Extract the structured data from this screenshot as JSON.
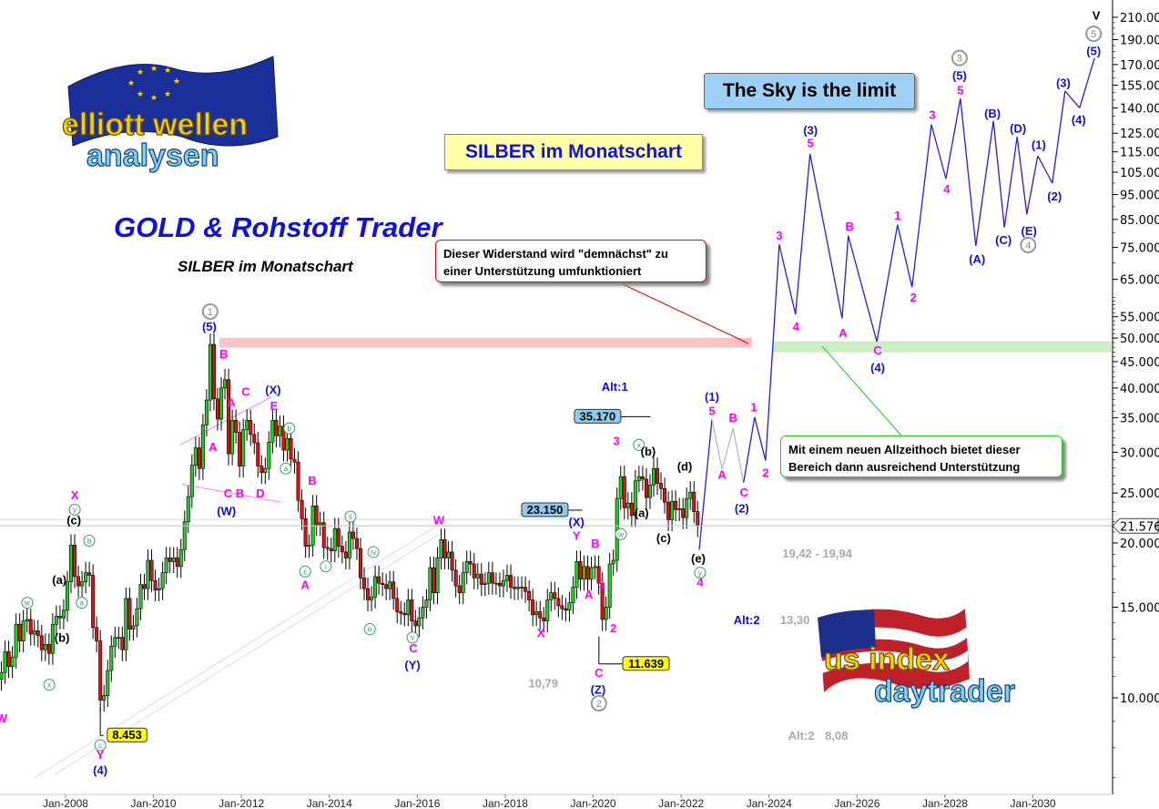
{
  "header": {
    "title_box": "SILBER im Monatschart",
    "sky_box": "The Sky is the limit",
    "trader_title": "GOLD & Rohstoff Trader",
    "sub_title": "SILBER im Monatschart",
    "logo_top": "elliott wellen analysen",
    "logo_bottom": "us index daytrader"
  },
  "callouts": {
    "red": "Dieser Widerstand wird \"demnächst\" zu einer Unterstützung umfunktioniert",
    "green": "Mit einem neuen Allzeithoch bietet dieser Bereich dann ausreichend Unterstützung"
  },
  "colors": {
    "up": "#22cc22",
    "down": "#e01010",
    "magenta": "#ff00ff",
    "blue": "#1010e0",
    "projection": "#2020e0",
    "resistance_zone": "#ffc0c8",
    "support_zone": "#c8f0c0",
    "gray": "#a0a0a0"
  },
  "chart_data": {
    "type": "candlestick",
    "instrument": "SILBER",
    "timeframe": "Monatschart",
    "y_scale": "log",
    "ylim": [
      6.6,
      225
    ],
    "xlim": [
      2006.51,
      2031.77
    ],
    "y_ticks": [
      10,
      15,
      20,
      25,
      30,
      35,
      40,
      45,
      50,
      55,
      65,
      75,
      85,
      95,
      105,
      115,
      125,
      140,
      155,
      170,
      190,
      210
    ],
    "y_tick_labels": [
      "10.000",
      "15.000",
      "20.000",
      "25.000",
      "30.000",
      "35.000",
      "40.000",
      "45.000",
      "50.000",
      "55.000",
      "65.000",
      "75.000",
      "85.000",
      "95.000",
      "105.000",
      "115.000",
      "125.000",
      "140.000",
      "155.000",
      "170.000",
      "190.000",
      "210.000"
    ],
    "x_ticks": [
      2008,
      2010,
      2012,
      2014,
      2016,
      2018,
      2020,
      2022,
      2024,
      2026,
      2028,
      2030
    ],
    "x_tick_labels": [
      "Jan-2008",
      "Jan-2010",
      "Jan-2012",
      "Jan-2014",
      "Jan-2016",
      "Jan-2018",
      "Jan-2020",
      "Jan-2022",
      "Jan-2024",
      "Jan-2026",
      "Jan-2028",
      "Jan-2030"
    ],
    "current_price": 21.576,
    "current_price_label": "21.576",
    "monthly_start": "2006-07",
    "monthly_closes": [
      11.2,
      12.3,
      11.5,
      12.0,
      13.9,
      12.9,
      14.1,
      14.2,
      13.3,
      13.5,
      13.2,
      12.4,
      12.7,
      12.2,
      13.9,
      14.4,
      14.3,
      14.8,
      16.8,
      19.8,
      17.2,
      16.5,
      16.8,
      17.5,
      17.3,
      13.7,
      12.9,
      9.9,
      10.1,
      11.3,
      12.6,
      13.1,
      13.1,
      12.4,
      15.6,
      13.6,
      13.8,
      14.9,
      16.6,
      16.3,
      18.5,
      16.9,
      16.2,
      16.3,
      17.5,
      18.7,
      18.4,
      18.7,
      18.0,
      19.4,
      22.0,
      24.6,
      28.3,
      30.6,
      27.9,
      33.9,
      37.9,
      48.6,
      38.1,
      34.8,
      40.0,
      41.5,
      29.8,
      34.6,
      32.8,
      28.2,
      33.2,
      34.6,
      32.5,
      31.3,
      28.2,
      27.4,
      27.9,
      31.4,
      34.6,
      32.3,
      33.7,
      30.3,
      31.9,
      29.1,
      28.7,
      24.2,
      22.3,
      19.7,
      19.8,
      23.6,
      21.7,
      21.9,
      19.6,
      19.5,
      19.3,
      21.3,
      19.7,
      19.2,
      18.7,
      21.0,
      20.4,
      19.5,
      17.1,
      16.3,
      15.5,
      15.7,
      17.2,
      16.7,
      16.6,
      16.3,
      16.8,
      15.6,
      14.7,
      14.6,
      14.5,
      15.5,
      14.1,
      13.8,
      14.3,
      15.0,
      15.5,
      17.9,
      16.0,
      18.7,
      20.3,
      18.7,
      19.2,
      17.7,
      16.5,
      16.0,
      17.5,
      18.4,
      18.2,
      17.1,
      17.4,
      16.6,
      16.7,
      17.5,
      16.7,
      16.7,
      16.5,
      16.9,
      17.3,
      16.4,
      16.3,
      16.4,
      16.4,
      16.1,
      15.5,
      14.5,
      14.7,
      14.3,
      14.1,
      15.5,
      16.0,
      15.6,
      15.1,
      14.9,
      14.8,
      15.3,
      16.4,
      18.4,
      17.0,
      18.0,
      17.0,
      17.9,
      18.0,
      16.7,
      14.2,
      15.0,
      18.2,
      18.5,
      24.4,
      26.9,
      23.4,
      23.9,
      22.6,
      26.4,
      26.9,
      26.6,
      24.5,
      25.9,
      27.9,
      26.1,
      25.5,
      24.0,
      22.2,
      24.1,
      23.2,
      23.3,
      22.4,
      24.4,
      25.1,
      23.0,
      21.6
    ],
    "zones": [
      {
        "name": "resistance",
        "from": 2011.5,
        "to": 2023.6,
        "low": 48.0,
        "high": 50.0,
        "color": "#ffc0c8"
      },
      {
        "name": "support",
        "from": 2024.1,
        "to": 2031.77,
        "low": 47.0,
        "high": 49.2,
        "color": "#c8f0c0"
      }
    ],
    "horizontal_lines": [
      22.2,
      21.6
    ],
    "price_tags": [
      {
        "text": "35.170",
        "date": 2020.1,
        "price": 35.17,
        "style": "blue",
        "line_to": 2021.3
      },
      {
        "text": "23.150",
        "date": 2018.9,
        "price": 23.15,
        "style": "blue",
        "line_to": 2019.75
      },
      {
        "text": "11.639",
        "date": 2021.2,
        "price": 11.639,
        "style": "yellow",
        "line_from": 2020.13
      },
      {
        "text": "8.453",
        "date": 2009.4,
        "price": 8.453,
        "style": "yellow",
        "line_from": 2008.79
      }
    ],
    "projection": {
      "points": [
        [
          2022.41,
          19.4
        ],
        [
          2022.7,
          34.8
        ],
        [
          2022.93,
          27.8
        ],
        [
          2023.18,
          33.4
        ],
        [
          2023.42,
          26.2
        ],
        [
          2023.67,
          35.1
        ],
        [
          2023.92,
          28.9
        ],
        [
          2024.23,
          76
        ],
        [
          2024.6,
          55.6
        ],
        [
          2024.93,
          114
        ],
        [
          2025.66,
          54.6
        ],
        [
          2025.8,
          79
        ],
        [
          2026.45,
          49.2
        ],
        [
          2026.92,
          83
        ],
        [
          2027.25,
          62.8
        ],
        [
          2027.69,
          130
        ],
        [
          2028.02,
          102
        ],
        [
          2028.35,
          146
        ],
        [
          2028.7,
          75.5
        ],
        [
          2029.1,
          132
        ],
        [
          2029.35,
          82
        ],
        [
          2029.64,
          123
        ],
        [
          2029.86,
          87
        ],
        [
          2030.11,
          113
        ],
        [
          2030.44,
          100
        ],
        [
          2030.73,
          151
        ],
        [
          2031.06,
          140
        ],
        [
          2031.4,
          175
        ]
      ],
      "gray_segments": [
        1,
        2,
        3
      ]
    },
    "channel_lines": [
      [
        [
          2007.3,
          7.0
        ],
        [
          2016.45,
          21.6
        ]
      ],
      [
        [
          2007.75,
          7.1
        ],
        [
          2016.5,
          20.8
        ]
      ]
    ],
    "triangle_lines": [
      [
        [
          2010.6,
          31.0
        ],
        [
          2012.7,
          38.5
        ]
      ],
      [
        [
          2010.65,
          26.0
        ],
        [
          2012.9,
          24.0
        ]
      ]
    ],
    "wave_labels": [
      [
        2011.29,
        56.3,
        "1",
        "gray-circle"
      ],
      [
        2011.27,
        52.7,
        "(5)",
        "blue"
      ],
      [
        2011.6,
        46.7,
        "B",
        "magenta"
      ],
      [
        2011.77,
        37.5,
        "A",
        "magenta"
      ],
      [
        2012.1,
        39.4,
        "C",
        "magenta"
      ],
      [
        2012.72,
        39.7,
        "(X)",
        "blue"
      ],
      [
        2012.74,
        37.0,
        "E",
        "magenta"
      ],
      [
        2011.35,
        30.8,
        "A",
        "magenta"
      ],
      [
        2011.83,
        25.0,
        "C B",
        "magenta"
      ],
      [
        2012.43,
        25.0,
        "D",
        "magenta"
      ],
      [
        2011.66,
        23.1,
        "(W)",
        "blue"
      ],
      [
        2013.09,
        33.4,
        "b",
        "green-circle"
      ],
      [
        2013.01,
        27.9,
        "a",
        "green-circle"
      ],
      [
        2013.61,
        26.5,
        "B",
        "magenta"
      ],
      [
        2013.45,
        17.6,
        "c",
        "green-circle"
      ],
      [
        2013.45,
        16.6,
        "A",
        "magenta"
      ],
      [
        2014.48,
        22.5,
        "ii",
        "green-circle"
      ],
      [
        2013.92,
        18.0,
        "i",
        "green-circle"
      ],
      [
        2015.0,
        19.2,
        "iv",
        "green-circle"
      ],
      [
        2014.92,
        13.6,
        "iii",
        "green-circle"
      ],
      [
        2015.89,
        13.1,
        "v",
        "green-circle"
      ],
      [
        2015.91,
        12.5,
        "C",
        "magenta"
      ],
      [
        2015.89,
        11.6,
        "(Y)",
        "blue"
      ],
      [
        2016.49,
        22.2,
        "W",
        "magenta"
      ],
      [
        2018.81,
        13.4,
        "X",
        "magenta"
      ],
      [
        2019.62,
        22.0,
        "(X)",
        "blue"
      ],
      [
        2019.62,
        20.7,
        "Y",
        "magenta"
      ],
      [
        2020.05,
        20.0,
        "B",
        "magenta"
      ],
      [
        2019.9,
        15.9,
        "A",
        "magenta"
      ],
      [
        2020.2,
        16.7,
        "1",
        "magenta"
      ],
      [
        2020.46,
        13.7,
        "2",
        "magenta"
      ],
      [
        2020.13,
        11.2,
        "C",
        "magenta"
      ],
      [
        2020.11,
        10.4,
        "(Z)",
        "blue"
      ],
      [
        2020.13,
        9.76,
        "2",
        "gray-circle"
      ],
      [
        2019.45,
        10.7,
        "10,79",
        "gray-text"
      ],
      [
        2020.53,
        31.6,
        "3",
        "magenta"
      ],
      [
        2021.04,
        31.0,
        "x",
        "green-circle"
      ],
      [
        2021.25,
        30.2,
        "(b)",
        "black"
      ],
      [
        2021.1,
        22.9,
        "(a)",
        "black"
      ],
      [
        2020.63,
        20.8,
        "w",
        "green-circle"
      ],
      [
        2021.6,
        20.5,
        "(c)",
        "black"
      ],
      [
        2022.08,
        28.2,
        "(d)",
        "black"
      ],
      [
        2022.39,
        18.7,
        "(e)",
        "black"
      ],
      [
        2022.43,
        17.5,
        "y",
        "green-circle"
      ],
      [
        2022.43,
        16.8,
        "4",
        "magenta"
      ],
      [
        2020.49,
        40.3,
        "Alt:1",
        "blue"
      ],
      [
        2024.3,
        19.1,
        "19,42 - 19,94",
        "gray-text"
      ],
      [
        2023.49,
        14.2,
        "Alt:2",
        "blue"
      ],
      [
        2024.25,
        14.2,
        "13,30",
        "gray-text"
      ],
      [
        2024.73,
        8.46,
        "Alt:2",
        "gray-text"
      ],
      [
        2025.27,
        8.46,
        "8,08",
        "gray-text"
      ],
      [
        2008.21,
        24.8,
        "X",
        "magenta"
      ],
      [
        2008.21,
        23.2,
        "y",
        "green-circle"
      ],
      [
        2008.19,
        22.2,
        "(c)",
        "black"
      ],
      [
        2008.54,
        20.2,
        "b",
        "green-circle"
      ],
      [
        2007.86,
        17.0,
        "(a)",
        "black"
      ],
      [
        2007.13,
        15.3,
        "w",
        "green-circle"
      ],
      [
        2008.37,
        15.3,
        "a",
        "green-circle"
      ],
      [
        2007.92,
        13.1,
        "(b)",
        "black"
      ],
      [
        2007.63,
        10.6,
        "x",
        "green-circle"
      ],
      [
        2006.55,
        9.15,
        "W",
        "magenta"
      ],
      [
        2008.79,
        8.09,
        "c",
        "green-circle"
      ],
      [
        2008.79,
        7.76,
        "Y",
        "magenta"
      ],
      [
        2008.79,
        7.24,
        "(4)",
        "blue"
      ],
      [
        2022.7,
        38.5,
        "(1)",
        "blue"
      ],
      [
        2022.7,
        36.2,
        "5",
        "magenta"
      ],
      [
        2022.93,
        27.2,
        "A",
        "magenta"
      ],
      [
        2023.18,
        35.1,
        "B",
        "magenta"
      ],
      [
        2023.43,
        25.1,
        "C",
        "magenta"
      ],
      [
        2023.38,
        23.4,
        "(2)",
        "blue"
      ],
      [
        2023.65,
        36.8,
        "1",
        "magenta"
      ],
      [
        2023.92,
        27.4,
        "2",
        "magenta"
      ],
      [
        2024.23,
        79.3,
        "3",
        "magenta"
      ],
      [
        2024.61,
        52.7,
        "4",
        "magenta"
      ],
      [
        2024.94,
        127,
        "(3)",
        "blue"
      ],
      [
        2024.94,
        120,
        "5",
        "magenta"
      ],
      [
        2025.83,
        82.6,
        "B",
        "magenta"
      ],
      [
        2025.68,
        51.3,
        "A",
        "magenta"
      ],
      [
        2026.47,
        47.4,
        "C",
        "magenta"
      ],
      [
        2026.47,
        43.9,
        "(4)",
        "blue"
      ],
      [
        2026.92,
        86.7,
        "1",
        "magenta"
      ],
      [
        2027.28,
        60.1,
        "2",
        "magenta"
      ],
      [
        2027.71,
        136,
        "3",
        "magenta"
      ],
      [
        2028.04,
        97.5,
        "4",
        "magenta"
      ],
      [
        2028.33,
        175,
        "3",
        "gray-circle"
      ],
      [
        2028.33,
        162,
        "(5)",
        "blue"
      ],
      [
        2028.35,
        152,
        "5",
        "magenta"
      ],
      [
        2028.73,
        71.3,
        "(A)",
        "blue"
      ],
      [
        2029.08,
        137,
        "(B)",
        "blue"
      ],
      [
        2029.33,
        77.6,
        "(C)",
        "blue"
      ],
      [
        2029.66,
        128,
        "(D)",
        "blue"
      ],
      [
        2029.91,
        80.9,
        "(E)",
        "blue"
      ],
      [
        2029.89,
        75.8,
        "4",
        "gray-circle"
      ],
      [
        2030.13,
        119,
        "(1)",
        "blue"
      ],
      [
        2030.49,
        94.4,
        "(2)",
        "blue"
      ],
      [
        2030.69,
        157,
        "(3)",
        "blue"
      ],
      [
        2031.04,
        133,
        "(4)",
        "blue"
      ],
      [
        2031.38,
        181,
        "(5)",
        "blue"
      ],
      [
        2031.38,
        195,
        "5",
        "gray-circle"
      ],
      [
        2031.44,
        212,
        "V",
        "black-large"
      ]
    ]
  }
}
